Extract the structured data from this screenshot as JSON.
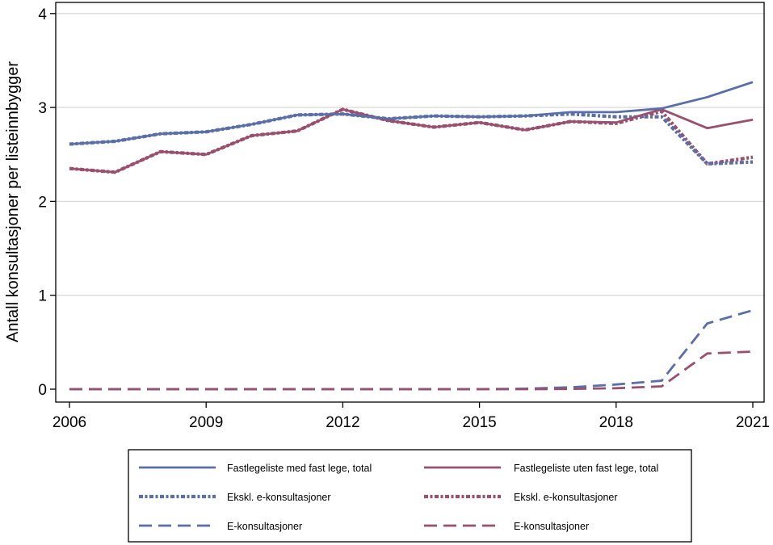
{
  "chart_data": {
    "type": "line",
    "title": "",
    "xlabel": "",
    "ylabel": "Antall konsultasjoner per listeinnbygger",
    "x": [
      2006,
      2007,
      2008,
      2009,
      2010,
      2011,
      2012,
      2013,
      2014,
      2015,
      2016,
      2017,
      2018,
      2019,
      2020,
      2021
    ],
    "xticks": [
      2006,
      2009,
      2012,
      2015,
      2018,
      2021
    ],
    "yticks": [
      0,
      1,
      2,
      3,
      4
    ],
    "ylim": [
      -0.1,
      4
    ],
    "grid": "horizontal",
    "legend_position": "bottom",
    "series": [
      {
        "name": "Fastlegeliste med fast lege, total",
        "color": "#5a6fa8",
        "style": "solid",
        "values": [
          2.61,
          2.64,
          2.72,
          2.74,
          2.82,
          2.92,
          2.93,
          2.88,
          2.91,
          2.9,
          2.91,
          2.95,
          2.95,
          2.99,
          3.11,
          3.27
        ]
      },
      {
        "name": "Fastlegeliste uten fast lege, total",
        "color": "#98506e",
        "style": "solid",
        "values": [
          2.35,
          2.31,
          2.53,
          2.5,
          2.7,
          2.75,
          2.98,
          2.86,
          2.79,
          2.84,
          2.76,
          2.85,
          2.84,
          2.98,
          2.78,
          2.87
        ]
      },
      {
        "name": "Ekskl. e-konsultasjoner",
        "color": "#5a6fa8",
        "style": "dotted",
        "values": [
          2.61,
          2.64,
          2.72,
          2.74,
          2.82,
          2.92,
          2.93,
          2.88,
          2.91,
          2.9,
          2.91,
          2.93,
          2.9,
          2.9,
          2.4,
          2.42
        ]
      },
      {
        "name": "Ekskl. e-konsultasjoner",
        "color": "#98506e",
        "style": "dotted",
        "values": [
          2.35,
          2.31,
          2.53,
          2.5,
          2.7,
          2.75,
          2.98,
          2.86,
          2.79,
          2.84,
          2.76,
          2.85,
          2.83,
          2.96,
          2.4,
          2.47
        ]
      },
      {
        "name": "E-konsultasjoner",
        "color": "#5a6fa8",
        "style": "dashed",
        "values": [
          0,
          0,
          0,
          0,
          0,
          0,
          0,
          0,
          0,
          0,
          0.005,
          0.02,
          0.05,
          0.09,
          0.7,
          0.84
        ]
      },
      {
        "name": "E-konsultasjoner",
        "color": "#98506e",
        "style": "dashed",
        "values": [
          0,
          0,
          0,
          0,
          0,
          0,
          0,
          0,
          0,
          0,
          0,
          0.003,
          0.01,
          0.03,
          0.38,
          0.4
        ]
      }
    ]
  }
}
